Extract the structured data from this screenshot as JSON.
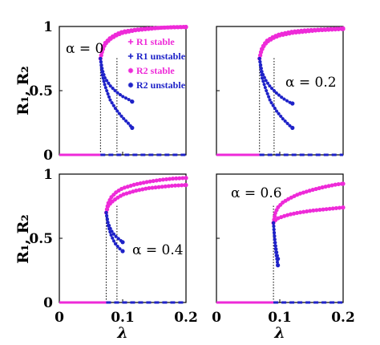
{
  "chart_data": [
    {
      "type": "scatter",
      "annotation": "α = 0",
      "xlim": [
        0,
        0.2
      ],
      "ylim": [
        0,
        1
      ],
      "xticks": [
        "",
        "",
        ""
      ],
      "yticks": [
        "0",
        "0.5",
        "1"
      ],
      "xlabel": "",
      "ylabel": "R₁, R₂",
      "thresholds": [
        0.065,
        0.091
      ],
      "legend": [
        {
          "marker": "+",
          "label": "R1 stable",
          "color": "#ee2ad8"
        },
        {
          "marker": "+",
          "label": "R1 unstable",
          "color": "#1e22c8"
        },
        {
          "marker": "*",
          "label": "R2 stable",
          "color": "#ee2ad8"
        },
        {
          "marker": "*",
          "label": "R2 unstable",
          "color": "#1e22c8"
        }
      ],
      "series": [
        {
          "role": "stable",
          "color": "#ee2ad8",
          "points": [
            [
              0.065,
              0.75
            ],
            [
              0.068,
              0.82
            ],
            [
              0.072,
              0.87
            ],
            [
              0.08,
              0.91
            ],
            [
              0.09,
              0.94
            ],
            [
              0.1,
              0.96
            ],
            [
              0.12,
              0.975
            ],
            [
              0.14,
              0.985
            ],
            [
              0.16,
              0.99
            ],
            [
              0.18,
              0.995
            ],
            [
              0.2,
              0.997
            ]
          ]
        },
        {
          "role": "stable",
          "color": "#ee2ad8",
          "points": [
            [
              0.065,
              0.75
            ],
            [
              0.068,
              0.81
            ],
            [
              0.072,
              0.86
            ],
            [
              0.08,
              0.9
            ],
            [
              0.09,
              0.93
            ],
            [
              0.1,
              0.95
            ],
            [
              0.12,
              0.97
            ],
            [
              0.14,
              0.98
            ],
            [
              0.16,
              0.99
            ],
            [
              0.18,
              0.993
            ],
            [
              0.2,
              0.995
            ]
          ]
        },
        {
          "role": "unstable",
          "color": "#1e22c8",
          "points": [
            [
              0.065,
              0.75
            ],
            [
              0.068,
              0.66
            ],
            [
              0.072,
              0.6
            ],
            [
              0.08,
              0.54
            ],
            [
              0.09,
              0.49
            ],
            [
              0.1,
              0.455
            ],
            [
              0.11,
              0.43
            ],
            [
              0.115,
              0.415
            ]
          ]
        },
        {
          "role": "unstable",
          "color": "#1e22c8",
          "points": [
            [
              0.065,
              0.75
            ],
            [
              0.068,
              0.62
            ],
            [
              0.072,
              0.54
            ],
            [
              0.08,
              0.43
            ],
            [
              0.09,
              0.35
            ],
            [
              0.1,
              0.29
            ],
            [
              0.11,
              0.24
            ],
            [
              0.115,
              0.21
            ]
          ]
        },
        {
          "role": "zero-stable",
          "color": "#ee2ad8",
          "points": [
            [
              0,
              0
            ],
            [
              0.065,
              0
            ]
          ]
        },
        {
          "role": "zero-unstable",
          "color": "#1e22c8",
          "points": [
            [
              0.065,
              0
            ],
            [
              0.2,
              0
            ]
          ]
        }
      ]
    },
    {
      "type": "scatter",
      "annotation": "α = 0.2",
      "xlim": [
        0,
        0.2
      ],
      "ylim": [
        0,
        1
      ],
      "xticks": [
        "",
        "",
        ""
      ],
      "yticks": [
        "",
        "",
        ""
      ],
      "xlabel": "",
      "ylabel": "",
      "thresholds": [
        0.068,
        0.091
      ],
      "legend": [],
      "series": [
        {
          "role": "stable",
          "color": "#ee2ad8",
          "points": [
            [
              0.068,
              0.75
            ],
            [
              0.071,
              0.82
            ],
            [
              0.075,
              0.86
            ],
            [
              0.08,
              0.89
            ],
            [
              0.09,
              0.92
            ],
            [
              0.1,
              0.94
            ],
            [
              0.12,
              0.96
            ],
            [
              0.14,
              0.97
            ],
            [
              0.16,
              0.975
            ],
            [
              0.18,
              0.98
            ],
            [
              0.2,
              0.985
            ]
          ]
        },
        {
          "role": "stable",
          "color": "#ee2ad8",
          "points": [
            [
              0.068,
              0.75
            ],
            [
              0.071,
              0.81
            ],
            [
              0.075,
              0.85
            ],
            [
              0.08,
              0.88
            ],
            [
              0.09,
              0.91
            ],
            [
              0.1,
              0.93
            ],
            [
              0.12,
              0.95
            ],
            [
              0.14,
              0.96
            ],
            [
              0.16,
              0.97
            ],
            [
              0.18,
              0.975
            ],
            [
              0.2,
              0.98
            ]
          ]
        },
        {
          "role": "unstable",
          "color": "#1e22c8",
          "points": [
            [
              0.068,
              0.75
            ],
            [
              0.072,
              0.64
            ],
            [
              0.078,
              0.58
            ],
            [
              0.085,
              0.53
            ],
            [
              0.095,
              0.48
            ],
            [
              0.105,
              0.44
            ],
            [
              0.115,
              0.41
            ],
            [
              0.12,
              0.4
            ]
          ]
        },
        {
          "role": "unstable",
          "color": "#1e22c8",
          "points": [
            [
              0.068,
              0.75
            ],
            [
              0.072,
              0.6
            ],
            [
              0.078,
              0.51
            ],
            [
              0.085,
              0.42
            ],
            [
              0.095,
              0.34
            ],
            [
              0.105,
              0.28
            ],
            [
              0.115,
              0.23
            ],
            [
              0.12,
              0.21
            ]
          ]
        },
        {
          "role": "zero-stable",
          "color": "#ee2ad8",
          "points": [
            [
              0,
              0
            ],
            [
              0.068,
              0
            ]
          ]
        },
        {
          "role": "zero-unstable",
          "color": "#1e22c8",
          "points": [
            [
              0.068,
              0
            ],
            [
              0.2,
              0
            ]
          ]
        }
      ]
    },
    {
      "type": "scatter",
      "annotation": "α = 0.4",
      "xlim": [
        0,
        0.2
      ],
      "ylim": [
        0,
        1
      ],
      "xticks": [
        "0",
        "0.1",
        "0.2"
      ],
      "yticks": [
        "0",
        "0.5",
        "1"
      ],
      "xlabel": "λ",
      "ylabel": "R₁, R₂",
      "thresholds": [
        0.074,
        0.091
      ],
      "legend": [],
      "series": [
        {
          "role": "stable",
          "color": "#ee2ad8",
          "points": [
            [
              0.074,
              0.7
            ],
            [
              0.077,
              0.77
            ],
            [
              0.082,
              0.82
            ],
            [
              0.09,
              0.86
            ],
            [
              0.1,
              0.89
            ],
            [
              0.12,
              0.92
            ],
            [
              0.14,
              0.94
            ],
            [
              0.16,
              0.955
            ],
            [
              0.18,
              0.965
            ],
            [
              0.2,
              0.97
            ]
          ]
        },
        {
          "role": "stable",
          "color": "#ee2ad8",
          "points": [
            [
              0.074,
              0.7
            ],
            [
              0.077,
              0.75
            ],
            [
              0.082,
              0.78
            ],
            [
              0.09,
              0.81
            ],
            [
              0.1,
              0.84
            ],
            [
              0.12,
              0.87
            ],
            [
              0.14,
              0.89
            ],
            [
              0.16,
              0.9
            ],
            [
              0.18,
              0.91
            ],
            [
              0.2,
              0.915
            ]
          ]
        },
        {
          "role": "unstable",
          "color": "#1e22c8",
          "points": [
            [
              0.074,
              0.7
            ],
            [
              0.077,
              0.62
            ],
            [
              0.082,
              0.56
            ],
            [
              0.088,
              0.52
            ],
            [
              0.095,
              0.49
            ],
            [
              0.1,
              0.47
            ]
          ]
        },
        {
          "role": "unstable",
          "color": "#1e22c8",
          "points": [
            [
              0.074,
              0.7
            ],
            [
              0.077,
              0.6
            ],
            [
              0.082,
              0.52
            ],
            [
              0.088,
              0.46
            ],
            [
              0.095,
              0.42
            ],
            [
              0.1,
              0.4
            ]
          ]
        },
        {
          "role": "zero-stable",
          "color": "#ee2ad8",
          "points": [
            [
              0,
              0
            ],
            [
              0.074,
              0
            ]
          ]
        },
        {
          "role": "zero-unstable",
          "color": "#1e22c8",
          "points": [
            [
              0.074,
              0
            ],
            [
              0.2,
              0
            ]
          ]
        }
      ]
    },
    {
      "type": "scatter",
      "annotation": "α = 0.6",
      "xlim": [
        0,
        0.2
      ],
      "ylim": [
        0,
        1
      ],
      "xticks": [
        "0",
        "0.1",
        "0.2"
      ],
      "yticks": [
        "",
        "",
        ""
      ],
      "xlabel": "λ",
      "ylabel": "",
      "thresholds": [
        0.09
      ],
      "legend": [],
      "series": [
        {
          "role": "stable",
          "color": "#ee2ad8",
          "points": [
            [
              0.09,
              0.62
            ],
            [
              0.093,
              0.7
            ],
            [
              0.097,
              0.74
            ],
            [
              0.105,
              0.78
            ],
            [
              0.115,
              0.81
            ],
            [
              0.13,
              0.845
            ],
            [
              0.15,
              0.875
            ],
            [
              0.17,
              0.9
            ],
            [
              0.19,
              0.92
            ],
            [
              0.2,
              0.925
            ]
          ]
        },
        {
          "role": "stable",
          "color": "#ee2ad8",
          "points": [
            [
              0.09,
              0.62
            ],
            [
              0.093,
              0.64
            ],
            [
              0.097,
              0.655
            ],
            [
              0.105,
              0.67
            ],
            [
              0.115,
              0.685
            ],
            [
              0.13,
              0.7
            ],
            [
              0.15,
              0.715
            ],
            [
              0.17,
              0.725
            ],
            [
              0.19,
              0.735
            ],
            [
              0.2,
              0.74
            ]
          ]
        },
        {
          "role": "unstable",
          "color": "#1e22c8",
          "points": [
            [
              0.09,
              0.62
            ],
            [
              0.092,
              0.5
            ],
            [
              0.094,
              0.42
            ],
            [
              0.096,
              0.37
            ],
            [
              0.097,
              0.34
            ]
          ]
        },
        {
          "role": "unstable",
          "color": "#1e22c8",
          "points": [
            [
              0.09,
              0.62
            ],
            [
              0.092,
              0.48
            ],
            [
              0.094,
              0.38
            ],
            [
              0.096,
              0.32
            ],
            [
              0.097,
              0.29
            ]
          ]
        },
        {
          "role": "zero-stable",
          "color": "#ee2ad8",
          "points": [
            [
              0,
              0
            ],
            [
              0.09,
              0
            ]
          ]
        },
        {
          "role": "zero-unstable",
          "color": "#1e22c8",
          "points": [
            [
              0.09,
              0
            ],
            [
              0.2,
              0
            ]
          ]
        }
      ]
    }
  ]
}
